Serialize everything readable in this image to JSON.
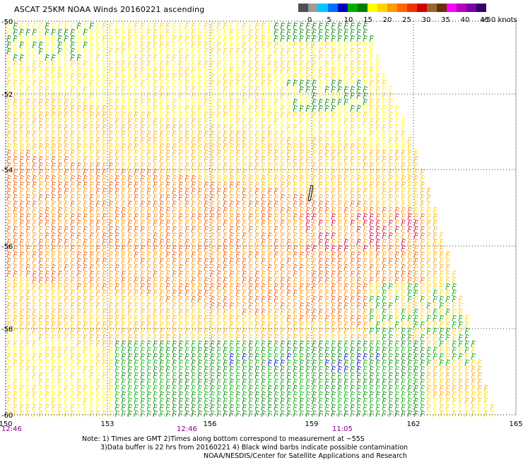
{
  "title": "ASCAT 25KM NOAA Winds 20160221 ascending",
  "colorbar": {
    "units": ">50 knots",
    "ticks": [
      "0",
      "5",
      "10",
      "15",
      "20",
      "25",
      "30",
      "35",
      "40",
      "45"
    ],
    "colors": [
      "#505050",
      "#9a9a9a",
      "#00c8ff",
      "#0070ff",
      "#0000c0",
      "#00b000",
      "#008000",
      "#ffff00",
      "#ffd200",
      "#ff9900",
      "#ff6600",
      "#ee3300",
      "#cc0000",
      "#996633",
      "#663300",
      "#ff00ff",
      "#bb00bb",
      "#7700aa",
      "#330066"
    ]
  },
  "map": {
    "lon_ticks": [
      "150",
      "153",
      "156",
      "159",
      "162",
      "165"
    ],
    "lat_ticks": [
      "-50",
      "-52",
      "-54",
      "-56",
      "-58",
      "-60"
    ],
    "time_labels": [
      "12:46",
      "12:46",
      "11:05"
    ],
    "time_color": "#800080"
  },
  "notes": {
    "line1": "Note: 1) Times are GMT 2)Times along bottom correspond to measurement at ~55S",
    "line2": "3)Data buffer is 22 hrs from 20160221 4) Black wind barbs indicate possible contamination",
    "line3": "NOAA/NESDIS/Center for Satellite Applications and Research"
  }
}
